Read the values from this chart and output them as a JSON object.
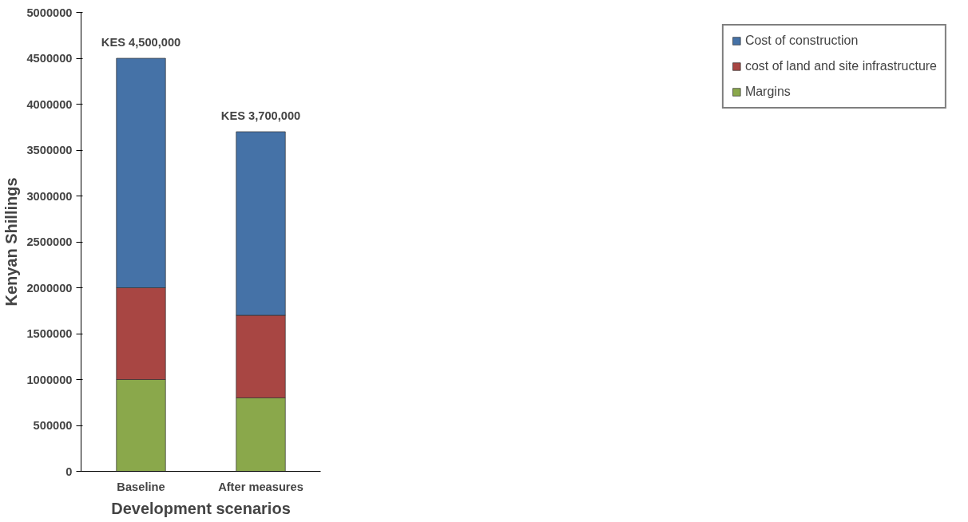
{
  "chart_data": {
    "type": "bar",
    "stacked": true,
    "categories": [
      "Baseline",
      "After measures"
    ],
    "xlabel": "Development scenarios",
    "ylabel": "Kenyan Shillings",
    "ylim": [
      0,
      5000000
    ],
    "yticks": [
      0,
      500000,
      1000000,
      1500000,
      2000000,
      2500000,
      3000000,
      3500000,
      4000000,
      4500000,
      5000000
    ],
    "series": [
      {
        "name": "Margins",
        "color": "#8aa84b",
        "values": [
          1000000,
          800000
        ]
      },
      {
        "name": "cost of land and site infrastructure",
        "color": "#a84643",
        "values": [
          1000000,
          900000
        ]
      },
      {
        "name": "Cost of construction",
        "color": "#4572a7",
        "values": [
          2500000,
          2000000
        ]
      }
    ],
    "totals": [
      "KES 4,500,000",
      "KES 3,700,000"
    ],
    "grid": false,
    "legend": "right"
  }
}
